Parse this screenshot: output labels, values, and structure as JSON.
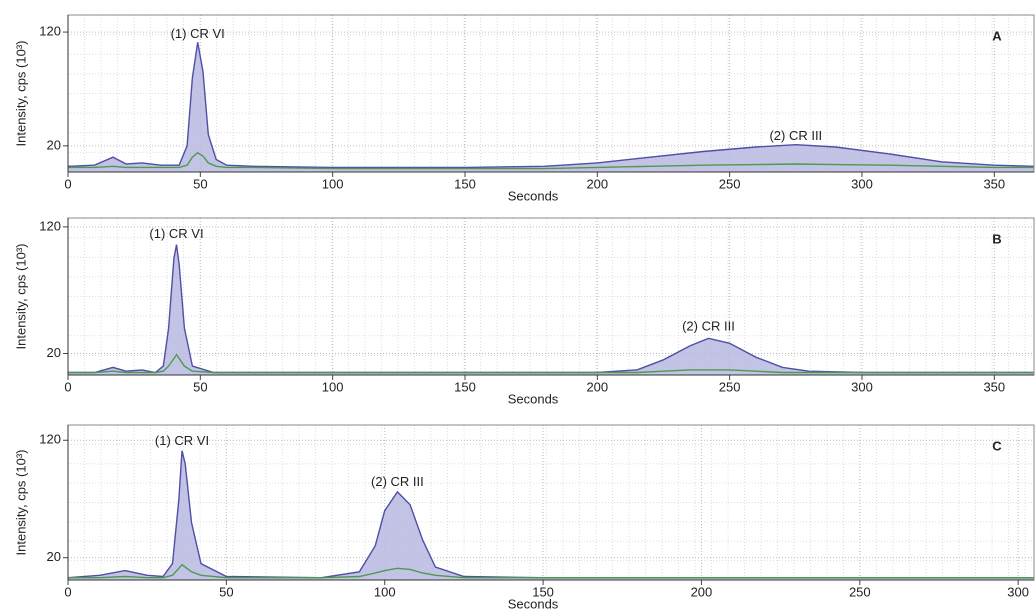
{
  "chart_data": [
    {
      "type": "line",
      "panel_label": "A",
      "x_label": "Seconds",
      "y_label": "Intensity, cps (10³)",
      "xlim": [
        0,
        365
      ],
      "ylim": [
        -3,
        135
      ],
      "xticks": [
        0,
        50,
        100,
        150,
        200,
        250,
        300,
        350
      ],
      "yticks": [
        20,
        120
      ],
      "grid": true,
      "x": [
        0,
        10,
        17,
        22,
        28,
        35,
        42,
        45,
        47,
        49,
        51,
        53,
        56,
        60,
        70,
        100,
        150,
        180,
        200,
        220,
        240,
        260,
        275,
        290,
        310,
        330,
        350,
        365
      ],
      "series": [
        {
          "color": "#4f4fa6",
          "fill": "#b9b9e2",
          "values": [
            2,
            3,
            10,
            4,
            5,
            3,
            3,
            20,
            80,
            111,
            85,
            30,
            8,
            3,
            2,
            1,
            1,
            2,
            5,
            10,
            15,
            19,
            21,
            19,
            13,
            6,
            3,
            2
          ]
        },
        {
          "color": "#4c9a4c",
          "values": [
            1,
            1,
            2,
            1,
            1,
            1,
            1,
            3,
            10,
            14,
            11,
            5,
            2,
            1,
            1,
            0,
            0,
            0,
            1,
            2,
            3,
            3.5,
            4,
            3.5,
            3,
            2,
            1,
            1
          ]
        }
      ],
      "annotations": [
        {
          "text": "(1) CR VI",
          "x": 49,
          "y": 118
        },
        {
          "text": "(2) CR III",
          "x": 275,
          "y": 28
        }
      ]
    },
    {
      "type": "line",
      "panel_label": "B",
      "x_label": "Seconds",
      "y_label": "Intensity, cps (10³)",
      "xlim": [
        0,
        365
      ],
      "ylim": [
        3,
        127
      ],
      "xticks": [
        0,
        50,
        100,
        150,
        200,
        250,
        300,
        350
      ],
      "yticks": [
        20,
        120
      ],
      "grid": true,
      "x": [
        0,
        10,
        17,
        22,
        28,
        33,
        36,
        38,
        40,
        41,
        42,
        44,
        47,
        55,
        70,
        100,
        150,
        200,
        215,
        225,
        235,
        242,
        250,
        260,
        270,
        280,
        300,
        365
      ],
      "series": [
        {
          "color": "#4f4fa6",
          "fill": "#b9b9e2",
          "values": [
            5,
            5,
            9,
            6,
            7,
            5,
            10,
            40,
            95,
            106,
            90,
            40,
            10,
            5,
            5,
            5,
            5,
            5,
            7,
            15,
            26,
            32,
            28,
            17,
            9,
            6,
            5,
            5
          ]
        },
        {
          "color": "#4c9a4c",
          "values": [
            5,
            5,
            6,
            5,
            5,
            5,
            6,
            10,
            16,
            19,
            16,
            10,
            6,
            5,
            5,
            5,
            5,
            5,
            5,
            6,
            7,
            7,
            7,
            6,
            5,
            5,
            5,
            5
          ]
        }
      ],
      "annotations": [
        {
          "text": "(1) CR VI",
          "x": 41,
          "y": 114
        },
        {
          "text": "(2) CR III",
          "x": 242,
          "y": 41
        }
      ]
    },
    {
      "type": "line",
      "panel_label": "C",
      "x_label": "Seconds",
      "y_label": "Intensity, cps (10³)",
      "xlim": [
        0,
        305
      ],
      "ylim": [
        1,
        133
      ],
      "xticks": [
        0,
        50,
        100,
        150,
        200,
        250,
        300
      ],
      "yticks": [
        20,
        120
      ],
      "grid": true,
      "x": [
        0,
        10,
        18,
        25,
        30,
        33,
        35,
        36,
        37,
        39,
        42,
        50,
        80,
        92,
        97,
        100,
        104,
        108,
        112,
        116,
        125,
        150,
        200,
        305
      ],
      "series": [
        {
          "color": "#4f4fa6",
          "fill": "#b9b9e2",
          "values": [
            3,
            5,
            9,
            5,
            4,
            15,
            70,
            111,
            100,
            50,
            15,
            4,
            3,
            8,
            30,
            60,
            76,
            65,
            35,
            12,
            4,
            3,
            3,
            3
          ]
        },
        {
          "color": "#4c9a4c",
          "values": [
            3,
            3,
            4,
            3,
            3,
            5,
            11,
            14,
            12,
            8,
            5,
            3,
            3,
            4,
            7,
            9,
            11,
            10,
            7,
            5,
            3,
            3,
            3,
            3
          ]
        }
      ],
      "annotations": [
        {
          "text": "(1) CR VI",
          "x": 36,
          "y": 119
        },
        {
          "text": "(2) CR III",
          "x": 104,
          "y": 84
        }
      ]
    }
  ]
}
